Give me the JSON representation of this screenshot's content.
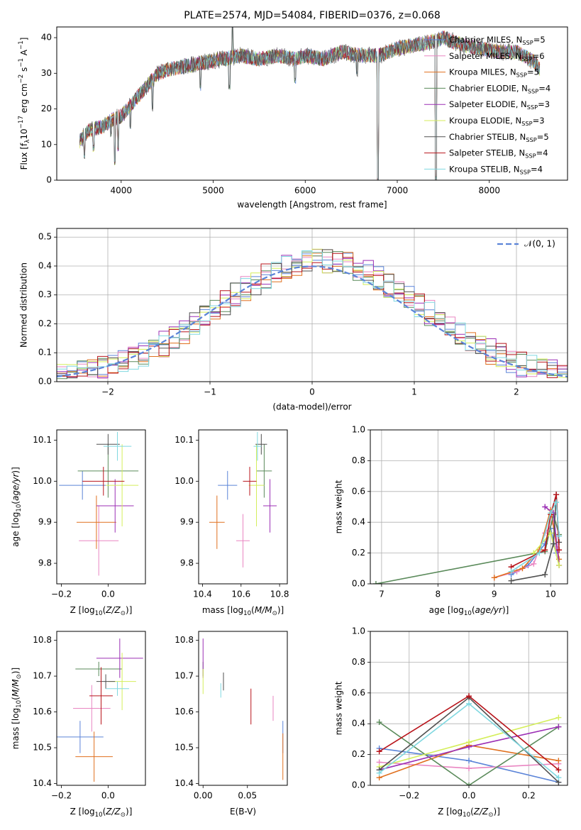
{
  "figure_title": "PLATE=2574, MJD=54084, FIBERID=0376, z=0.068",
  "colors": {
    "Chabrier MILES": "#5b84d8",
    "Salpeter MILES": "#e986c2",
    "Kroupa MILES": "#e0701f",
    "Chabrier ELODIE": "#5a8a5a",
    "Salpeter ELODIE": "#9b2fb5",
    "Kroupa ELODIE": "#d4ee5a",
    "Chabrier STELIB": "#505050",
    "Salpeter STELIB": "#b8141b",
    "Kroupa STELIB": "#7fd8e0",
    "gauss": "#5b84d8"
  },
  "chart_data": [
    {
      "id": "spectrum",
      "type": "line",
      "title": "PLATE=2574, MJD=54084, FIBERID=0376, z=0.068",
      "xlabel": "wavelength [Angstrom, rest frame]",
      "ylabel": "Flux [f_λ10^-17 erg cm^-2 s^-1 A^-1]",
      "xlim": [
        3300,
        8850
      ],
      "ylim": [
        0,
        43
      ],
      "xticks": [
        4000,
        5000,
        6000,
        7000,
        8000
      ],
      "yticks": [
        0,
        10,
        20,
        30,
        40
      ],
      "legend_position": "right",
      "legend": [
        {
          "label": "Chabrier MILES, N_SSP=5",
          "model": "Chabrier MILES"
        },
        {
          "label": "Salpeter MILES, N_SSP=6",
          "model": "Salpeter MILES"
        },
        {
          "label": "Kroupa MILES, N_SSP=5",
          "model": "Kroupa MILES"
        },
        {
          "label": "Chabrier ELODIE, N_SSP=4",
          "model": "Chabrier ELODIE"
        },
        {
          "label": "Salpeter ELODIE, N_SSP=3",
          "model": "Salpeter ELODIE"
        },
        {
          "label": "Kroupa ELODIE, N_SSP=3",
          "model": "Kroupa ELODIE"
        },
        {
          "label": "Chabrier STELIB, N_SSP=5",
          "model": "Chabrier STELIB"
        },
        {
          "label": "Salpeter STELIB, N_SSP=4",
          "model": "Salpeter STELIB"
        },
        {
          "label": "Kroupa STELIB, N_SSP=4",
          "model": "Kroupa STELIB"
        }
      ],
      "continuum": [
        [
          3550,
          11
        ],
        [
          3650,
          14
        ],
        [
          3800,
          15
        ],
        [
          3900,
          17
        ],
        [
          4000,
          18
        ],
        [
          4100,
          21
        ],
        [
          4200,
          24
        ],
        [
          4300,
          27
        ],
        [
          4400,
          30
        ],
        [
          4500,
          31
        ],
        [
          4700,
          32
        ],
        [
          4900,
          33
        ],
        [
          5100,
          34
        ],
        [
          5300,
          35
        ],
        [
          5500,
          34
        ],
        [
          5700,
          35
        ],
        [
          5900,
          34
        ],
        [
          6000,
          35
        ],
        [
          6200,
          34
        ],
        [
          6400,
          36
        ],
        [
          6600,
          35
        ],
        [
          6800,
          35
        ],
        [
          7000,
          37
        ],
        [
          7200,
          38
        ],
        [
          7400,
          39
        ],
        [
          7500,
          40
        ],
        [
          7700,
          38
        ],
        [
          7900,
          37
        ],
        [
          8100,
          36
        ],
        [
          8300,
          36
        ],
        [
          8500,
          33
        ],
        [
          8550,
          31
        ]
      ],
      "spikes": [
        [
          3600,
          7
        ],
        [
          3700,
          9
        ],
        [
          3890,
          13
        ],
        [
          3930,
          5
        ],
        [
          3968,
          9
        ],
        [
          4100,
          15
        ],
        [
          4340,
          20
        ],
        [
          4860,
          26
        ],
        [
          5175,
          26
        ],
        [
          5210,
          43
        ],
        [
          5890,
          28
        ],
        [
          6563,
          30
        ],
        [
          6790,
          0
        ],
        [
          7420,
          0
        ]
      ]
    },
    {
      "id": "residuals",
      "type": "histogram",
      "xlabel": "(data-model)/error",
      "ylabel": "Normed distribution",
      "xlim": [
        -2.5,
        2.5
      ],
      "ylim": [
        0,
        0.53
      ],
      "xticks": [
        -2,
        -1,
        0,
        1,
        2
      ],
      "yticks": [
        0.0,
        0.1,
        0.2,
        0.3,
        0.4,
        0.5
      ],
      "grid": true,
      "legend": [
        {
          "label": "𝒩(0, 1)",
          "model": "gauss"
        }
      ],
      "legend_position": "top-right",
      "bins": {
        "start": -2.5,
        "width": 0.1,
        "count": 50
      },
      "series_note_models": [
        "Chabrier MILES",
        "Salpeter MILES",
        "Kroupa MILES",
        "Chabrier ELODIE",
        "Salpeter ELODIE",
        "Kroupa ELODIE",
        "Chabrier STELIB",
        "Salpeter STELIB",
        "Kroupa STELIB"
      ]
    },
    {
      "id": "age_vs_Z",
      "type": "errorbar",
      "xlabel": "Z [log10(Z/Z⊙)]",
      "ylabel": "age  [log10(age/yr)]",
      "xlim": [
        -0.22,
        0.16
      ],
      "ylim": [
        9.75,
        10.125
      ],
      "xticks": [
        -0.2,
        0.0
      ],
      "yticks": [
        9.8,
        9.9,
        10.0,
        10.1
      ],
      "points": [
        {
          "model": "Chabrier MILES",
          "x": -0.11,
          "y": 9.99,
          "xerr": 0.1,
          "yerr": 0.035
        },
        {
          "model": "Salpeter MILES",
          "x": -0.04,
          "y": 9.855,
          "xerr": 0.085,
          "yerr": 0.085
        },
        {
          "model": "Kroupa MILES",
          "x": -0.05,
          "y": 9.9,
          "xerr": 0.085,
          "yerr": 0.065
        },
        {
          "model": "Chabrier ELODIE",
          "x": 0.0,
          "y": 10.025,
          "xerr": 0.13,
          "yerr": 0.065
        },
        {
          "model": "Salpeter ELODIE",
          "x": 0.03,
          "y": 9.94,
          "xerr": 0.08,
          "yerr": 0.065
        },
        {
          "model": "Kroupa ELODIE",
          "x": 0.06,
          "y": 9.99,
          "xerr": 0.07,
          "yerr": 0.1
        },
        {
          "model": "Chabrier STELIB",
          "x": 0.0,
          "y": 10.09,
          "xerr": 0.05,
          "yerr": 0.025
        },
        {
          "model": "Salpeter STELIB",
          "x": -0.02,
          "y": 10.0,
          "xerr": 0.09,
          "yerr": 0.035
        },
        {
          "model": "Kroupa STELIB",
          "x": 0.04,
          "y": 10.085,
          "xerr": 0.06,
          "yerr": 0.035
        }
      ]
    },
    {
      "id": "age_vs_mass",
      "type": "errorbar",
      "xlabel": "mass [log10(M/M⊙)]",
      "ylabel": "",
      "xlim": [
        10.38,
        10.84
      ],
      "ylim": [
        9.75,
        10.125
      ],
      "xticks": [
        10.4,
        10.6,
        10.8
      ],
      "yticks": [
        9.8,
        9.9,
        10.0,
        10.1
      ],
      "points": [
        {
          "model": "Chabrier MILES",
          "x": 10.53,
          "y": 9.99,
          "xerr": 0.05,
          "yerr": 0.035
        },
        {
          "model": "Salpeter MILES",
          "x": 10.61,
          "y": 9.855,
          "xerr": 0.035,
          "yerr": 0.065
        },
        {
          "model": "Kroupa MILES",
          "x": 10.475,
          "y": 9.9,
          "xerr": 0.04,
          "yerr": 0.065
        },
        {
          "model": "Chabrier ELODIE",
          "x": 10.72,
          "y": 10.025,
          "xerr": 0.04,
          "yerr": 0.065
        },
        {
          "model": "Salpeter ELODIE",
          "x": 10.75,
          "y": 9.94,
          "xerr": 0.035,
          "yerr": 0.065
        },
        {
          "model": "Kroupa ELODIE",
          "x": 10.68,
          "y": 9.99,
          "xerr": 0.04,
          "yerr": 0.1
        },
        {
          "model": "Chabrier STELIB",
          "x": 10.705,
          "y": 10.09,
          "xerr": 0.03,
          "yerr": 0.025
        },
        {
          "model": "Salpeter STELIB",
          "x": 10.645,
          "y": 10.0,
          "xerr": 0.035,
          "yerr": 0.035
        },
        {
          "model": "Kroupa STELIB",
          "x": 10.685,
          "y": 10.085,
          "xerr": 0.02,
          "yerr": 0.035
        }
      ]
    },
    {
      "id": "weight_vs_age",
      "type": "line",
      "xlabel": "age  [log10(age/yr)]",
      "ylabel": "mass weight",
      "xlim": [
        6.8,
        10.3
      ],
      "ylim": [
        0,
        1.0
      ],
      "xticks": [
        7,
        8,
        9,
        10
      ],
      "yticks": [
        0.0,
        0.2,
        0.4,
        0.6,
        0.8,
        1.0
      ],
      "grid": true,
      "series": [
        {
          "model": "Chabrier MILES",
          "points": [
            [
              9.3,
              0.06
            ],
            [
              9.6,
              0.12
            ],
            [
              9.9,
              0.26
            ],
            [
              10.0,
              0.36
            ],
            [
              10.1,
              0.2
            ]
          ]
        },
        {
          "model": "Salpeter MILES",
          "points": [
            [
              9.0,
              0.04
            ],
            [
              9.4,
              0.08
            ],
            [
              9.7,
              0.13
            ],
            [
              9.9,
              0.33
            ],
            [
              10.05,
              0.4
            ],
            [
              10.1,
              0.24
            ]
          ]
        },
        {
          "model": "Kroupa MILES",
          "points": [
            [
              9.0,
              0.04
            ],
            [
              9.5,
              0.1
            ],
            [
              9.8,
              0.22
            ],
            [
              10.0,
              0.48
            ],
            [
              10.15,
              0.16
            ]
          ]
        },
        {
          "model": "Chabrier ELODIE",
          "points": [
            [
              6.9,
              0.0
            ],
            [
              9.9,
              0.21
            ],
            [
              10.05,
              0.45
            ],
            [
              10.15,
              0.32
            ]
          ]
        },
        {
          "model": "Salpeter ELODIE",
          "points": [
            [
              9.9,
              0.5
            ],
            [
              10.05,
              0.46
            ],
            [
              10.15,
              0.12
            ]
          ]
        },
        {
          "model": "Kroupa ELODIE",
          "points": [
            [
              9.7,
              0.2
            ],
            [
              10.0,
              0.33
            ],
            [
              10.15,
              0.12
            ]
          ]
        },
        {
          "model": "Chabrier STELIB",
          "points": [
            [
              9.3,
              0.02
            ],
            [
              9.9,
              0.06
            ],
            [
              10.05,
              0.26
            ],
            [
              10.1,
              0.58
            ],
            [
              10.15,
              0.27
            ]
          ]
        },
        {
          "model": "Salpeter STELIB",
          "points": [
            [
              9.3,
              0.11
            ],
            [
              9.9,
              0.22
            ],
            [
              10.0,
              0.45
            ],
            [
              10.1,
              0.58
            ],
            [
              10.15,
              0.22
            ]
          ]
        },
        {
          "model": "Kroupa STELIB",
          "points": [
            [
              9.3,
              0.08
            ],
            [
              9.8,
              0.2
            ],
            [
              10.0,
              0.46
            ],
            [
              10.1,
              0.53
            ],
            [
              10.15,
              0.31
            ]
          ]
        }
      ]
    },
    {
      "id": "mass_vs_Z",
      "type": "errorbar",
      "xlabel": "Z [log10(Z/Z⊙)]",
      "ylabel": "mass [log10(M/M⊙)]",
      "xlim": [
        -0.22,
        0.16
      ],
      "ylim": [
        10.395,
        10.825
      ],
      "xticks": [
        -0.2,
        0.0
      ],
      "yticks": [
        10.4,
        10.5,
        10.6,
        10.7,
        10.8
      ],
      "points": [
        {
          "model": "Chabrier MILES",
          "x": -0.12,
          "y": 10.53,
          "xerr": 0.1,
          "yerr": 0.045
        },
        {
          "model": "Salpeter MILES",
          "x": -0.07,
          "y": 10.61,
          "xerr": 0.08,
          "yerr": 0.065
        },
        {
          "model": "Kroupa MILES",
          "x": -0.06,
          "y": 10.475,
          "xerr": 0.08,
          "yerr": 0.07
        },
        {
          "model": "Chabrier ELODIE",
          "x": -0.04,
          "y": 10.72,
          "xerr": 0.1,
          "yerr": 0.02
        },
        {
          "model": "Salpeter ELODIE",
          "x": 0.05,
          "y": 10.75,
          "xerr": 0.1,
          "yerr": 0.055
        },
        {
          "model": "Kroupa ELODIE",
          "x": 0.06,
          "y": 10.685,
          "xerr": 0.06,
          "yerr": 0.08
        },
        {
          "model": "Chabrier STELIB",
          "x": -0.01,
          "y": 10.685,
          "xerr": 0.04,
          "yerr": 0.02
        },
        {
          "model": "Salpeter STELIB",
          "x": -0.03,
          "y": 10.645,
          "xerr": 0.05,
          "yerr": 0.08
        },
        {
          "model": "Kroupa STELIB",
          "x": 0.04,
          "y": 10.665,
          "xerr": 0.05,
          "yerr": 0.02
        }
      ]
    },
    {
      "id": "mass_vs_ebv",
      "type": "errorbar",
      "xlabel": "E(B-V)",
      "ylabel": "",
      "xlim": [
        -0.005,
        0.095
      ],
      "ylim": [
        10.395,
        10.825
      ],
      "xticks": [
        0.0,
        0.05
      ],
      "yticks": [
        10.4,
        10.5,
        10.6,
        10.7,
        10.8
      ],
      "points": [
        {
          "model": "Chabrier MILES",
          "x": 0.09,
          "y": 10.53,
          "xerr": 0.0,
          "yerr": 0.045
        },
        {
          "model": "Salpeter MILES",
          "x": 0.079,
          "y": 10.61,
          "xerr": 0.0,
          "yerr": 0.035
        },
        {
          "model": "Kroupa MILES",
          "x": 0.09,
          "y": 10.475,
          "xerr": 0.0,
          "yerr": 0.065
        },
        {
          "model": "Chabrier ELODIE",
          "x": 0.0,
          "y": 10.72,
          "xerr": 0.0,
          "yerr": 0.02
        },
        {
          "model": "Salpeter ELODIE",
          "x": 0.0,
          "y": 10.75,
          "xerr": 0.0,
          "yerr": 0.055
        },
        {
          "model": "Kroupa ELODIE",
          "x": 0.0,
          "y": 10.685,
          "xerr": 0.0,
          "yerr": 0.035
        },
        {
          "model": "Chabrier STELIB",
          "x": 0.023,
          "y": 10.685,
          "xerr": 0.0,
          "yerr": 0.025
        },
        {
          "model": "Salpeter STELIB",
          "x": 0.054,
          "y": 10.615,
          "xerr": 0.0,
          "yerr": 0.05
        },
        {
          "model": "Kroupa STELIB",
          "x": 0.02,
          "y": 10.66,
          "xerr": 0.0,
          "yerr": 0.02
        }
      ]
    },
    {
      "id": "weight_vs_Z",
      "type": "line",
      "xlabel": "Z [log10(Z/Z⊙)]",
      "ylabel": "mass weight",
      "xlim": [
        -0.33,
        0.33
      ],
      "ylim": [
        0,
        1.0
      ],
      "xticks": [
        -0.2,
        0.0,
        0.2
      ],
      "yticks": [
        0.0,
        0.2,
        0.4,
        0.6,
        0.8,
        1.0
      ],
      "grid": true,
      "series": [
        {
          "model": "Chabrier MILES",
          "points": [
            [
              -0.3,
              0.24
            ],
            [
              0.0,
              0.16
            ],
            [
              0.3,
              0.02
            ]
          ]
        },
        {
          "model": "Salpeter MILES",
          "points": [
            [
              -0.3,
              0.15
            ],
            [
              0.0,
              0.11
            ],
            [
              0.3,
              0.14
            ]
          ]
        },
        {
          "model": "Kroupa MILES",
          "points": [
            [
              -0.3,
              0.05
            ],
            [
              0.0,
              0.26
            ],
            [
              0.3,
              0.16
            ]
          ]
        },
        {
          "model": "Chabrier ELODIE",
          "points": [
            [
              -0.3,
              0.41
            ],
            [
              0.0,
              0.0
            ],
            [
              0.3,
              0.38
            ]
          ]
        },
        {
          "model": "Salpeter ELODIE",
          "points": [
            [
              -0.3,
              0.1
            ],
            [
              0.0,
              0.25
            ],
            [
              0.3,
              0.38
            ]
          ]
        },
        {
          "model": "Kroupa ELODIE",
          "points": [
            [
              -0.3,
              0.12
            ],
            [
              0.0,
              0.28
            ],
            [
              0.3,
              0.44
            ]
          ]
        },
        {
          "model": "Chabrier STELIB",
          "points": [
            [
              -0.3,
              0.1
            ],
            [
              0.0,
              0.57
            ],
            [
              0.3,
              0.02
            ]
          ]
        },
        {
          "model": "Salpeter STELIB",
          "points": [
            [
              -0.3,
              0.22
            ],
            [
              0.0,
              0.58
            ],
            [
              0.3,
              0.1
            ]
          ]
        },
        {
          "model": "Kroupa STELIB",
          "points": [
            [
              -0.3,
              0.08
            ],
            [
              0.0,
              0.53
            ],
            [
              0.3,
              0.05
            ]
          ]
        }
      ]
    }
  ]
}
